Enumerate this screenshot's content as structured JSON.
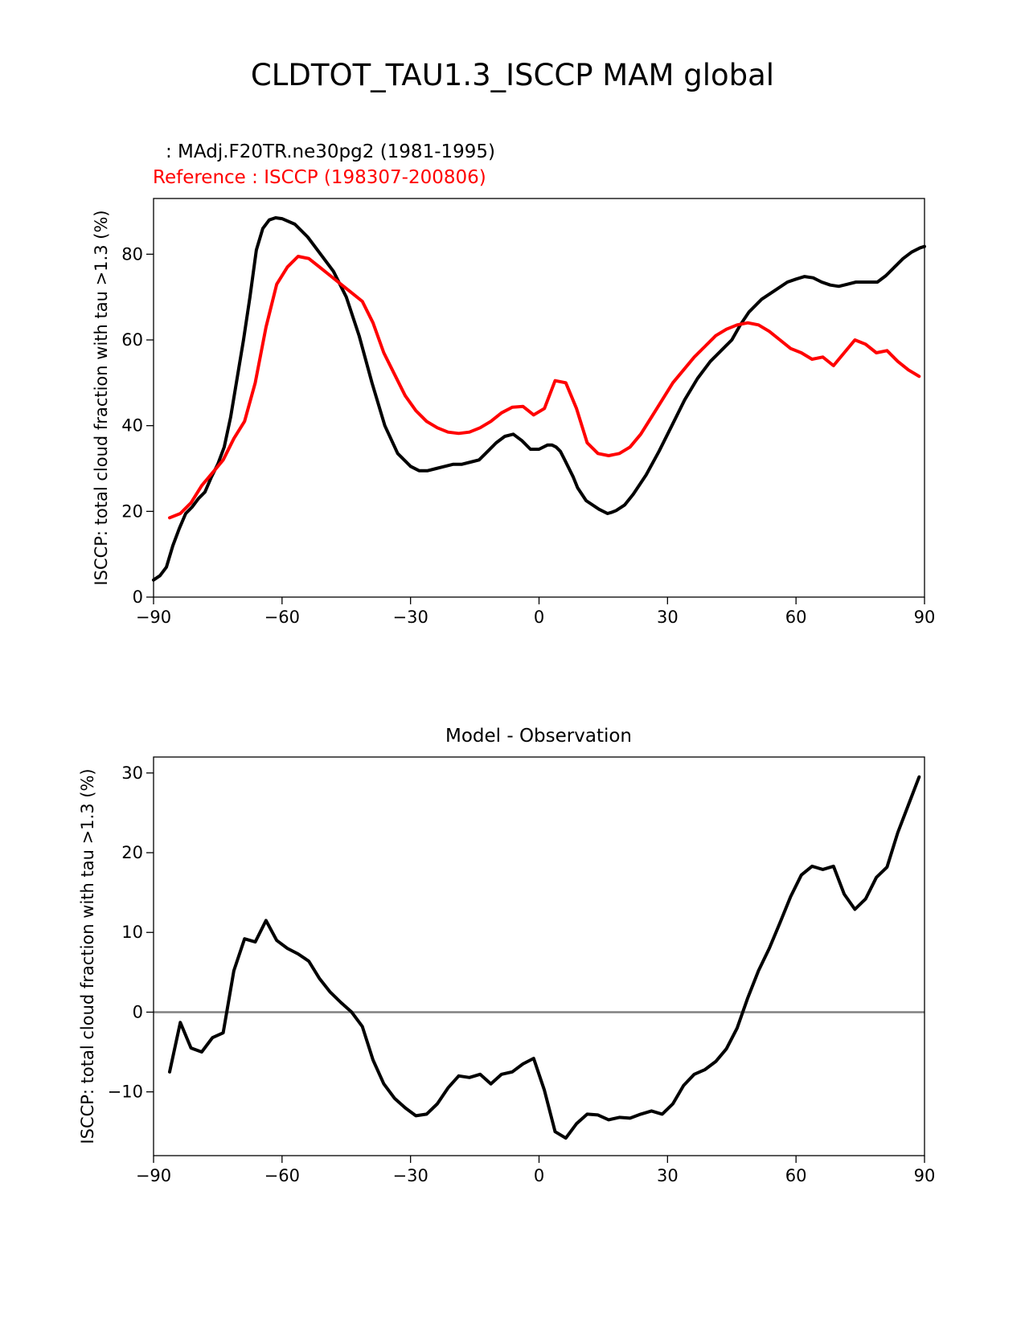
{
  "figure": {
    "title": "CLDTOT_TAU1.3_ISCCP MAM global"
  },
  "chart_data": [
    {
      "type": "line",
      "legend": {
        "model": " : MAdj.F20TR.ne30pg2 (1981-1995)",
        "reference": "Reference : ISCCP (198307-200806)"
      },
      "title": "",
      "xlabel": "",
      "ylabel": "ISCCP: total cloud fraction with tau >1.3 (%)",
      "xlim": [
        -90,
        90
      ],
      "ylim": [
        0,
        93
      ],
      "xticks": [
        -90,
        -60,
        -30,
        0,
        30,
        60,
        90
      ],
      "xtick_labels": [
        "−90",
        "−60",
        "−30",
        "0",
        "30",
        "60",
        "90"
      ],
      "yticks": [
        0,
        20,
        40,
        60,
        80
      ],
      "ytick_labels": [
        "0",
        "20",
        "40",
        "60",
        "80"
      ],
      "series": [
        {
          "name": "MAdj.F20TR.ne30pg2 (1981-1995)",
          "color": "#000000",
          "x": [
            -90,
            -88.5,
            -87,
            -85.5,
            -84,
            -82.5,
            -81,
            -79.5,
            -78,
            -76.5,
            -75,
            -73.5,
            -72,
            -70.5,
            -69,
            -67.5,
            -66,
            -64.5,
            -63,
            -61.5,
            -60,
            -57,
            -54,
            -51,
            -48,
            -45,
            -42,
            -39,
            -36,
            -33,
            -30,
            -28,
            -26,
            -24,
            -22,
            -20,
            -18,
            -16,
            -14,
            -12,
            -10,
            -8,
            -6,
            -4,
            -2,
            0,
            2,
            3,
            4,
            5,
            6,
            8,
            9,
            11,
            14,
            16,
            17,
            18,
            20,
            22,
            25,
            28,
            31,
            34,
            37,
            40,
            43,
            45,
            47,
            49,
            52,
            55,
            58,
            60,
            62,
            64,
            66,
            68,
            70,
            72,
            74,
            77,
            79,
            81,
            83,
            85,
            87,
            89,
            90
          ],
          "values": [
            4,
            5,
            7,
            12,
            16,
            19.5,
            21,
            23,
            24.5,
            28,
            31,
            35,
            42,
            51,
            60,
            70,
            81,
            86,
            88,
            88.5,
            88.3,
            87,
            84,
            80,
            76,
            70,
            61,
            50,
            40,
            33.5,
            30.5,
            29.5,
            29.5,
            30,
            30.5,
            31,
            31,
            31.5,
            32,
            34,
            36,
            37.5,
            38,
            36.5,
            34.5,
            34.5,
            35.5,
            35.5,
            35,
            34,
            32,
            28,
            25.5,
            22.5,
            20.5,
            19.5,
            19.8,
            20.2,
            21.5,
            24,
            28.5,
            34,
            40,
            46,
            51,
            55,
            58,
            60,
            63.5,
            66.5,
            69.5,
            71.5,
            73.5,
            74.2,
            74.8,
            74.5,
            73.5,
            72.8,
            72.5,
            73,
            73.5,
            73.5,
            73.5,
            75,
            77,
            79,
            80.5,
            81.5,
            81.8
          ]
        },
        {
          "name": "ISCCP (198307-200806)",
          "color": "#ff0000",
          "x": [
            -86.25,
            -83.75,
            -81.25,
            -78.75,
            -76.25,
            -73.75,
            -71.25,
            -68.75,
            -66.25,
            -63.75,
            -61.25,
            -58.75,
            -56.25,
            -53.75,
            -51.25,
            -48.75,
            -46.25,
            -43.75,
            -41.25,
            -38.75,
            -36.25,
            -33.75,
            -31.25,
            -28.75,
            -26.25,
            -23.75,
            -21.25,
            -18.75,
            -16.25,
            -13.75,
            -11.25,
            -8.75,
            -6.25,
            -3.75,
            -1.25,
            1.25,
            3.75,
            6.25,
            8.75,
            11.25,
            13.75,
            16.25,
            18.75,
            21.25,
            23.75,
            26.25,
            28.75,
            31.25,
            33.75,
            36.25,
            38.75,
            41.25,
            43.75,
            46.25,
            48.75,
            51.25,
            53.75,
            56.25,
            58.75,
            61.25,
            63.75,
            66.25,
            68.75,
            71.25,
            73.75,
            76.25,
            78.75,
            81.25,
            83.75,
            86.25,
            88.75
          ],
          "values": [
            18.5,
            19.5,
            22,
            26,
            29,
            32,
            37,
            41,
            50,
            63,
            73,
            77,
            79.5,
            79,
            77,
            75,
            73,
            71,
            69,
            64,
            57,
            52,
            47,
            43.5,
            41,
            39.5,
            38.5,
            38.2,
            38.5,
            39.5,
            41,
            43,
            44.3,
            44.5,
            42.5,
            44,
            50.5,
            50,
            44,
            36,
            33.5,
            33,
            33.5,
            35,
            38,
            42,
            46,
            50,
            53,
            56,
            58.5,
            61,
            62.5,
            63.5,
            64,
            63.5,
            62,
            60,
            58,
            57,
            55.5,
            56,
            54,
            57,
            60,
            59,
            57,
            57.5,
            55,
            53,
            51.5
          ]
        }
      ]
    },
    {
      "type": "line",
      "title": "Model - Observation",
      "xlabel": "",
      "ylabel": "ISCCP: total cloud fraction with tau >1.3 (%)",
      "xlim": [
        -90,
        90
      ],
      "ylim": [
        -18,
        32
      ],
      "xticks": [
        -90,
        -60,
        -30,
        0,
        30,
        60,
        90
      ],
      "xtick_labels": [
        "−90",
        "−60",
        "−30",
        "0",
        "30",
        "60",
        "90"
      ],
      "yticks": [
        -10,
        0,
        10,
        20,
        30
      ],
      "ytick_labels": [
        "−10",
        "0",
        "10",
        "20",
        "30"
      ],
      "zero_line_color": "#808080",
      "series": [
        {
          "name": "Model - Observation",
          "color": "#000000",
          "x": [
            -86.25,
            -83.75,
            -81.25,
            -78.75,
            -76.25,
            -73.75,
            -71.25,
            -68.75,
            -66.25,
            -63.75,
            -61.25,
            -58.75,
            -56.25,
            -53.75,
            -51.25,
            -48.75,
            -46.25,
            -43.75,
            -41.25,
            -38.75,
            -36.25,
            -33.75,
            -31.25,
            -28.75,
            -26.25,
            -23.75,
            -21.25,
            -18.75,
            -16.25,
            -13.75,
            -11.25,
            -8.75,
            -6.25,
            -3.75,
            -1.25,
            1.25,
            3.75,
            6.25,
            8.75,
            11.25,
            13.75,
            16.25,
            18.75,
            21.25,
            23.75,
            26.25,
            28.75,
            31.25,
            33.75,
            36.25,
            38.75,
            41.25,
            43.75,
            46.25,
            48.75,
            51.25,
            53.75,
            56.25,
            58.75,
            61.25,
            63.75,
            66.25,
            68.75,
            71.25,
            73.75,
            76.25,
            78.75,
            81.25,
            83.75,
            86.25,
            88.75
          ],
          "values": [
            -7.5,
            -1.3,
            -4.5,
            -5,
            -3.2,
            -2.6,
            5.2,
            9.2,
            8.8,
            11.5,
            9,
            8,
            7.3,
            6.4,
            4.2,
            2.5,
            1.2,
            0,
            -1.8,
            -6,
            -9,
            -10.8,
            -12,
            -13,
            -12.8,
            -11.5,
            -9.5,
            -8,
            -8.2,
            -7.8,
            -9,
            -7.8,
            -7.5,
            -6.5,
            -5.8,
            -9.8,
            -15,
            -15.8,
            -14,
            -12.8,
            -12.9,
            -13.5,
            -13.2,
            -13.3,
            -12.8,
            -12.4,
            -12.8,
            -11.5,
            -9.2,
            -7.8,
            -7.2,
            -6.2,
            -4.6,
            -2,
            1.8,
            5.2,
            8,
            11.2,
            14.5,
            17.2,
            18.3,
            17.9,
            18.3,
            14.8,
            12.9,
            14.2,
            16.9,
            18.2,
            22.5,
            26,
            29.5
          ]
        }
      ]
    }
  ]
}
